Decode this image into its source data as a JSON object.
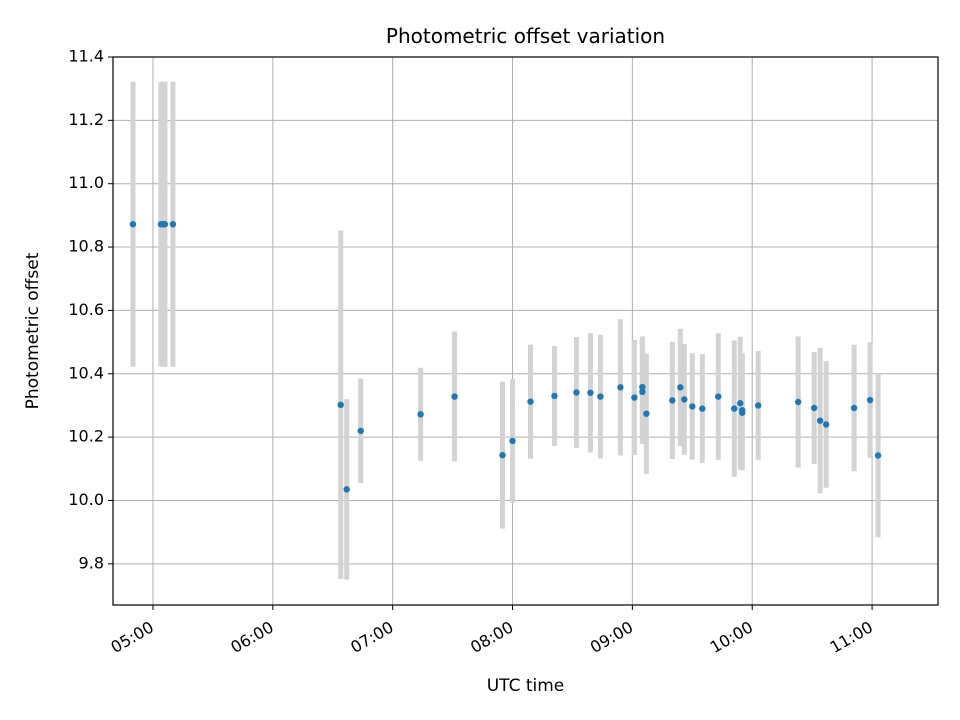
{
  "chart_data": {
    "type": "scatter",
    "title": "Photometric offset variation",
    "xlabel": "UTC time",
    "ylabel": "Photometric offset",
    "x_is_time": true,
    "xlim": [
      "04:40",
      "11:33"
    ],
    "ylim": [
      9.67,
      11.4
    ],
    "x_ticks": [
      "05:00",
      "06:00",
      "07:00",
      "08:00",
      "09:00",
      "10:00",
      "11:00"
    ],
    "y_ticks": [
      "9.8",
      "10.0",
      "10.2",
      "10.4",
      "10.6",
      "10.8",
      "11.0",
      "11.2",
      "11.4"
    ],
    "grid": true,
    "colors": {
      "point": "#1f77b4",
      "errorbar": "#d3d3d3",
      "grid": "#b0b0b0",
      "axes": "#000000"
    },
    "series": [
      {
        "points": [
          {
            "x": "04:50",
            "y": 10.872,
            "err": 0.45
          },
          {
            "x": "05:04",
            "y": 10.872,
            "err": 0.45
          },
          {
            "x": "05:05",
            "y": 10.872,
            "err": 0.45
          },
          {
            "x": "05:06",
            "y": 10.872,
            "err": 0.45
          },
          {
            "x": "05:10",
            "y": 10.872,
            "err": 0.45
          },
          {
            "x": "06:34",
            "y": 10.302,
            "err": 0.55
          },
          {
            "x": "06:37",
            "y": 10.035,
            "err": 0.285
          },
          {
            "x": "06:44",
            "y": 10.22,
            "err": 0.165
          },
          {
            "x": "07:14",
            "y": 10.272,
            "err": 0.147
          },
          {
            "x": "07:31",
            "y": 10.328,
            "err": 0.205
          },
          {
            "x": "07:55",
            "y": 10.143,
            "err": 0.232
          },
          {
            "x": "08:00",
            "y": 10.188,
            "err": 0.195
          },
          {
            "x": "08:09",
            "y": 10.312,
            "err": 0.18
          },
          {
            "x": "08:21",
            "y": 10.33,
            "err": 0.158
          },
          {
            "x": "08:32",
            "y": 10.341,
            "err": 0.175
          },
          {
            "x": "08:39",
            "y": 10.34,
            "err": 0.188
          },
          {
            "x": "08:44",
            "y": 10.328,
            "err": 0.195
          },
          {
            "x": "08:54",
            "y": 10.357,
            "err": 0.215
          },
          {
            "x": "09:01",
            "y": 10.325,
            "err": 0.182
          },
          {
            "x": "09:05",
            "y": 10.358,
            "err": 0.16
          },
          {
            "x": "09:05",
            "y": 10.343,
            "err": 0.165
          },
          {
            "x": "09:07",
            "y": 10.274,
            "err": 0.19
          },
          {
            "x": "09:20",
            "y": 10.316,
            "err": 0.185
          },
          {
            "x": "09:24",
            "y": 10.357,
            "err": 0.185
          },
          {
            "x": "09:26",
            "y": 10.319,
            "err": 0.175
          },
          {
            "x": "09:30",
            "y": 10.297,
            "err": 0.168
          },
          {
            "x": "09:35",
            "y": 10.29,
            "err": 0.172
          },
          {
            "x": "09:43",
            "y": 10.328,
            "err": 0.2
          },
          {
            "x": "09:51",
            "y": 10.29,
            "err": 0.215
          },
          {
            "x": "09:54",
            "y": 10.307,
            "err": 0.21
          },
          {
            "x": "09:55",
            "y": 10.285,
            "err": 0.18
          },
          {
            "x": "09:55",
            "y": 10.277,
            "err": 0.182
          },
          {
            "x": "10:03",
            "y": 10.3,
            "err": 0.172
          },
          {
            "x": "10:23",
            "y": 10.311,
            "err": 0.207
          },
          {
            "x": "10:31",
            "y": 10.292,
            "err": 0.177
          },
          {
            "x": "10:34",
            "y": 10.252,
            "err": 0.23
          },
          {
            "x": "10:37",
            "y": 10.24,
            "err": 0.2
          },
          {
            "x": "10:51",
            "y": 10.292,
            "err": 0.2
          },
          {
            "x": "10:59",
            "y": 10.317,
            "err": 0.182
          },
          {
            "x": "11:03",
            "y": 10.142,
            "err": 0.258
          }
        ]
      }
    ]
  }
}
